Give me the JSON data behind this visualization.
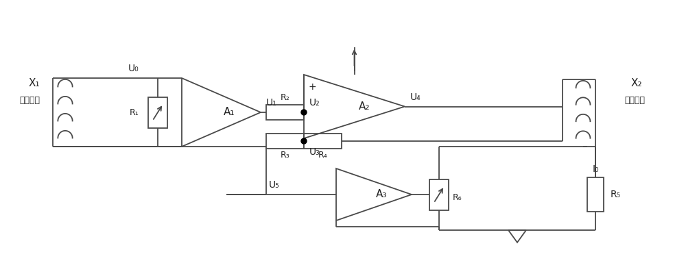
{
  "bg_color": "white",
  "line_color": "#4a4a4a",
  "text_color": "#222222",
  "figsize": [
    10.0,
    3.84
  ],
  "dpi": 100,
  "components": {
    "X1_line1": "X₁",
    "X1_line2": "测量绕组",
    "X2_line1": "X₂",
    "X2_line2": "补偿绕组",
    "A1": "A₁",
    "A2": "A₂",
    "A3": "A₃",
    "R1": "R₁",
    "R2": "R₂",
    "R3": "R₃",
    "R4": "R₄",
    "R5": "R₅",
    "R6": "R₆",
    "U0": "U₀",
    "U1": "U₁",
    "U2": "U₂",
    "U3": "U₃",
    "U4": "U₄",
    "U5": "U₅",
    "I0": "I₀",
    "plus": "+"
  }
}
